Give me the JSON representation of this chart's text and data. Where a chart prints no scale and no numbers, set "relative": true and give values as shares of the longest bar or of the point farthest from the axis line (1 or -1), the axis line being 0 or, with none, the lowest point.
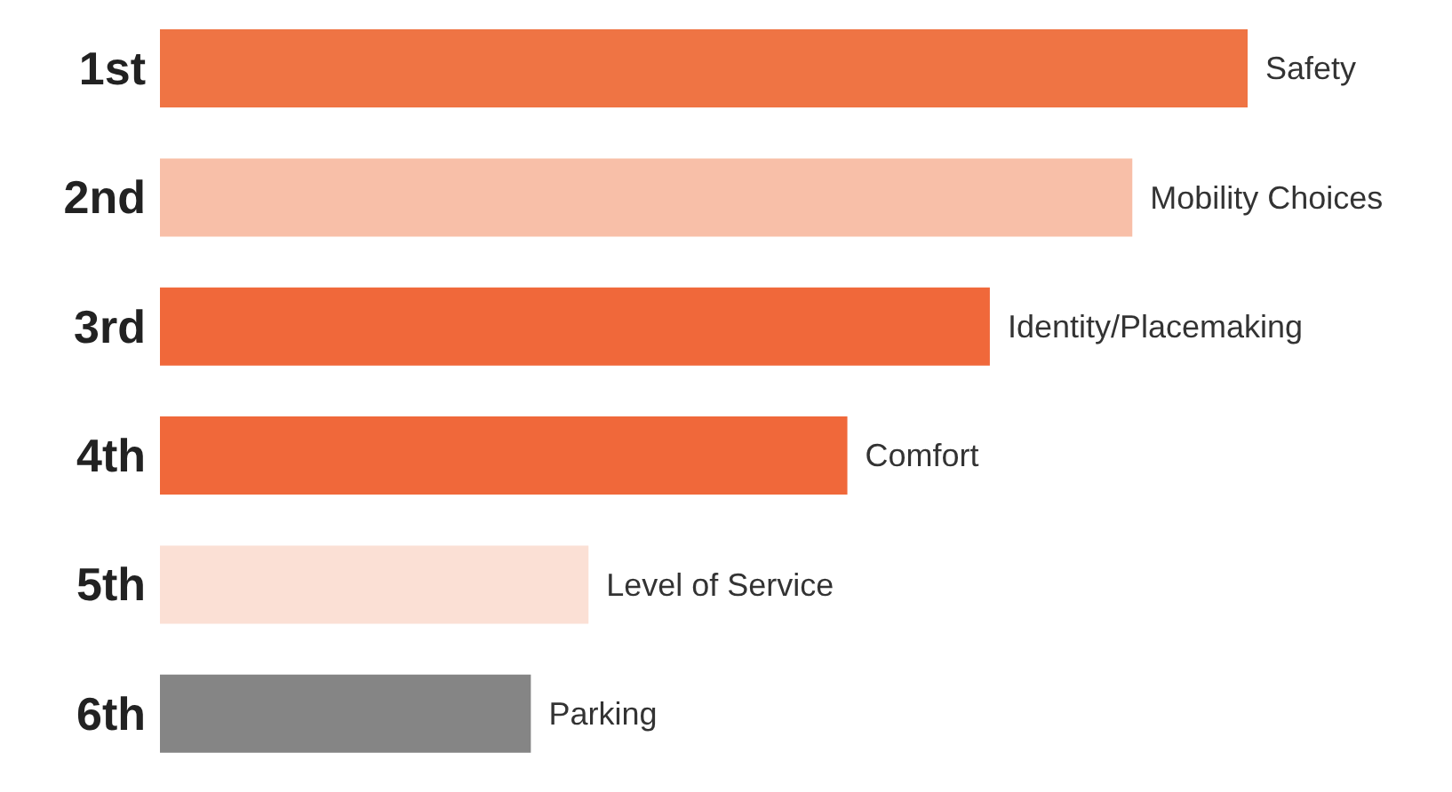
{
  "chart_data": {
    "type": "bar",
    "orientation": "horizontal",
    "relative": true,
    "categories": [
      "1st",
      "2nd",
      "3rd",
      "4th",
      "5th",
      "6th"
    ],
    "values": [
      1,
      0.894,
      0.763,
      0.632,
      0.394,
      0.341
    ],
    "colors": [
      "#ef7444",
      "#f8bfa8",
      "#f0683a",
      "#f0683a",
      "#fbe0d5",
      "#858585"
    ],
    "annotations": [
      {
        "text": "Safety",
        "x": 1,
        "y": "1st"
      },
      {
        "text": "Mobility Choices",
        "x": 0.894,
        "y": "2nd"
      },
      {
        "text": "Identity/Placemaking",
        "x": 0.763,
        "y": "3rd"
      },
      {
        "text": "Comfort",
        "x": 0.632,
        "y": "4th"
      },
      {
        "text": "Level of Service",
        "x": 0.394,
        "y": "5th"
      },
      {
        "text": "Parking",
        "x": 0.341,
        "y": "6th"
      }
    ],
    "grid": false,
    "legend": false
  }
}
